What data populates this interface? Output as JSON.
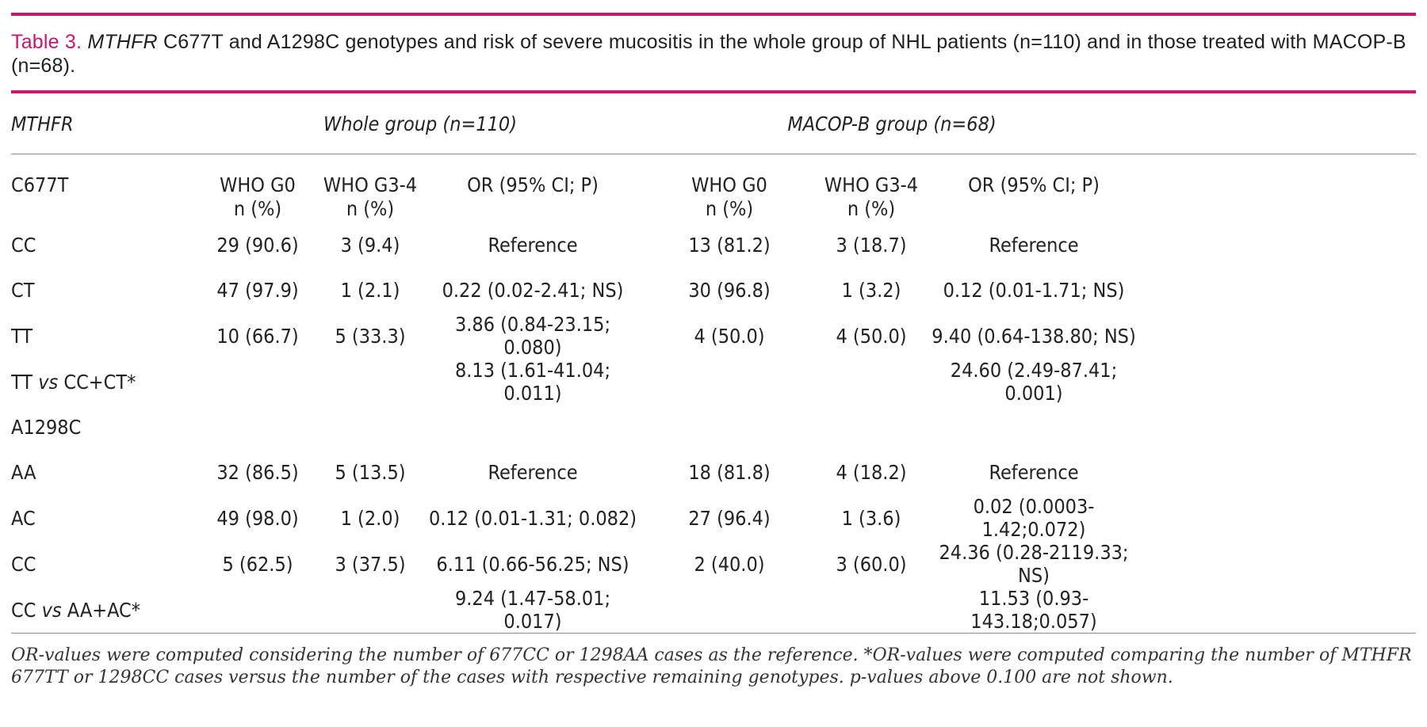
{
  "caption": {
    "label": "Table 3.",
    "gene": "MTHFR",
    "text": "C677T and A1298C genotypes and risk of severe mucositis in the whole group of NHL patients (n=110) and in those treated with MACOP-B (n=68)."
  },
  "header": {
    "gene": "MTHFR",
    "whole_group": "Whole group (n=110)",
    "macop_group": "MACOP-B group (n=68)"
  },
  "subheader": {
    "c677t": "C677T",
    "who_g0": "WHO G0",
    "who_g34": "WHO G3-4",
    "n_pct": "n (%)",
    "or": "OR (95% CI; P)"
  },
  "rows": [
    {
      "genotype": "CC",
      "w_g0": "29  (90.6)",
      "w_g34": "3 (9.4)",
      "w_or": "Reference",
      "m_g0": "13 (81.2)",
      "m_g34": "3 (18.7)",
      "m_or": "Reference"
    },
    {
      "genotype": "CT",
      "w_g0": "47 (97.9)",
      "w_g34": "1 (2.1)",
      "w_or": "0.22 (0.02-2.41; NS)",
      "m_g0": "30 (96.8)",
      "m_g34": "1 (3.2)",
      "m_or": "0.12 (0.01-1.71; NS)"
    },
    {
      "genotype": "TT",
      "w_g0": "10 (66.7)",
      "w_g34": "5 (33.3)",
      "w_or": "3.86 (0.84-23.15; 0.080)",
      "m_g0": "4 (50.0)",
      "m_g34": "4 (50.0)",
      "m_or": "9.40 (0.64-138.80; NS)"
    },
    {
      "genotype_a": "TT",
      "vs": "vs",
      "genotype_b": "CC+CT*",
      "w_g0": "",
      "w_g34": "",
      "w_or": "8.13 (1.61-41.04; 0.011)",
      "m_g0": "",
      "m_g34": "",
      "m_or": "24.60 (2.49-87.41; 0.001)"
    },
    {
      "genotype": "A1298C",
      "w_g0": "",
      "w_g34": "",
      "w_or": "",
      "m_g0": "",
      "m_g34": "",
      "m_or": ""
    },
    {
      "genotype": "AA",
      "w_g0": "32 (86.5)",
      "w_g34": "5 (13.5)",
      "w_or": "Reference",
      "m_g0": "18 (81.8)",
      "m_g34": "4 (18.2)",
      "m_or": "Reference"
    },
    {
      "genotype": "AC",
      "w_g0": "49 (98.0)",
      "w_g34": "1 (2.0)",
      "w_or": "0.12 (0.01-1.31; 0.082)",
      "m_g0": "27 (96.4)",
      "m_g34": "1 (3.6)",
      "m_or": "0.02 (0.0003-1.42;0.072)"
    },
    {
      "genotype": "CC",
      "w_g0": "5 (62.5)",
      "w_g34": "3 (37.5)",
      "w_or": "6.11 (0.66-56.25; NS)",
      "m_g0": "2 (40.0)",
      "m_g34": "3 (60.0)",
      "m_or": "24.36 (0.28-2119.33; NS)"
    },
    {
      "genotype_a": "CC",
      "vs": "vs",
      "genotype_b": "AA+AC*",
      "w_g0": "",
      "w_g34": "",
      "w_or": "9.24 (1.47-58.01; 0.017)",
      "m_g0": "",
      "m_g34": "",
      "m_or": "11.53 (0.93-143.18;0.057)"
    }
  ],
  "footnote": "OR-values were computed considering the number of 677CC or 1298AA cases as the reference. *OR-values were computed comparing the number of MTHFR 677TT or 1298CC cases versus the number of the cases with respective remaining genotypes. p-values above 0.100 are not shown.",
  "colors": {
    "accent": "#c7176f",
    "text": "#222222",
    "rule": "#8c8c8c"
  }
}
